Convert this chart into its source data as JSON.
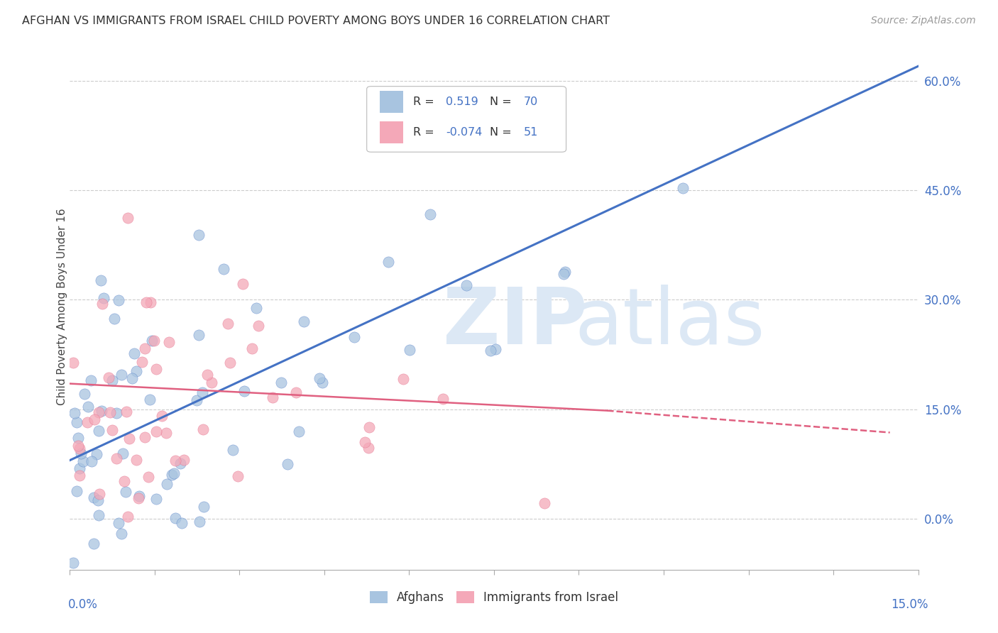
{
  "title": "AFGHAN VS IMMIGRANTS FROM ISRAEL CHILD POVERTY AMONG BOYS UNDER 16 CORRELATION CHART",
  "source": "Source: ZipAtlas.com",
  "ylabel": "Child Poverty Among Boys Under 16",
  "right_yticks": [
    0.0,
    0.15,
    0.3,
    0.45,
    0.6
  ],
  "right_yticklabels": [
    "0.0%",
    "15.0%",
    "30.0%",
    "45.0%",
    "60.0%"
  ],
  "afghan_R": 0.519,
  "afghan_N": 70,
  "israel_R": -0.074,
  "israel_N": 51,
  "afghan_color": "#a8c4e0",
  "israel_color": "#f4a8b8",
  "afghan_line_color": "#4472c4",
  "israel_line_color": "#e06080",
  "legend_label_afghan": "Afghans",
  "legend_label_israel": "Immigrants from Israel",
  "background_color": "#ffffff",
  "xmin": 0.0,
  "xmax": 0.15,
  "ymin": -0.07,
  "ymax": 0.65,
  "scatter_size": 120,
  "afghan_seed": 42,
  "israel_seed": 7
}
